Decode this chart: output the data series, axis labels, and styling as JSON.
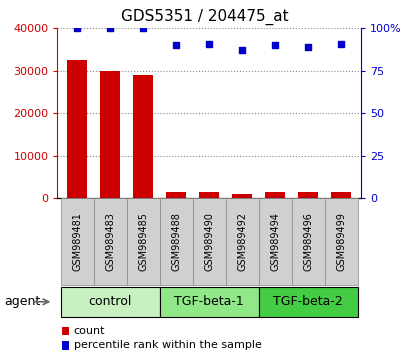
{
  "title": "GDS5351 / 204475_at",
  "samples": [
    "GSM989481",
    "GSM989483",
    "GSM989485",
    "GSM989488",
    "GSM989490",
    "GSM989492",
    "GSM989494",
    "GSM989496",
    "GSM989499"
  ],
  "counts": [
    32500,
    30000,
    29000,
    1500,
    1500,
    1000,
    1500,
    1500,
    1500
  ],
  "percentiles": [
    100,
    100,
    100,
    90,
    91,
    87,
    90,
    89,
    91
  ],
  "groups": [
    {
      "label": "control",
      "start": 0,
      "end": 3,
      "color": "#c8f0c0"
    },
    {
      "label": "TGF-beta-1",
      "start": 3,
      "end": 6,
      "color": "#90e888"
    },
    {
      "label": "TGF-beta-2",
      "start": 6,
      "end": 9,
      "color": "#44cc44"
    }
  ],
  "bar_color": "#cc0000",
  "scatter_color": "#0000cc",
  "left_ylim": [
    0,
    40000
  ],
  "right_ylim": [
    0,
    100
  ],
  "left_yticks": [
    0,
    10000,
    20000,
    30000,
    40000
  ],
  "right_yticks": [
    0,
    25,
    50,
    75,
    100
  ],
  "right_yticklabels": [
    "0",
    "25",
    "50",
    "75",
    "100%"
  ],
  "left_yticklabels": [
    "0",
    "10000",
    "20000",
    "30000",
    "40000"
  ],
  "bar_color_left": "#cc0000",
  "scatter_color_right": "#0000cc",
  "agent_label": "agent",
  "legend_count": "count",
  "legend_percentile": "percentile rank within the sample",
  "sample_box_color": "#d0d0d0",
  "title_fontsize": 11,
  "tick_fontsize": 8,
  "group_label_fontsize": 9,
  "sample_label_fontsize": 7
}
